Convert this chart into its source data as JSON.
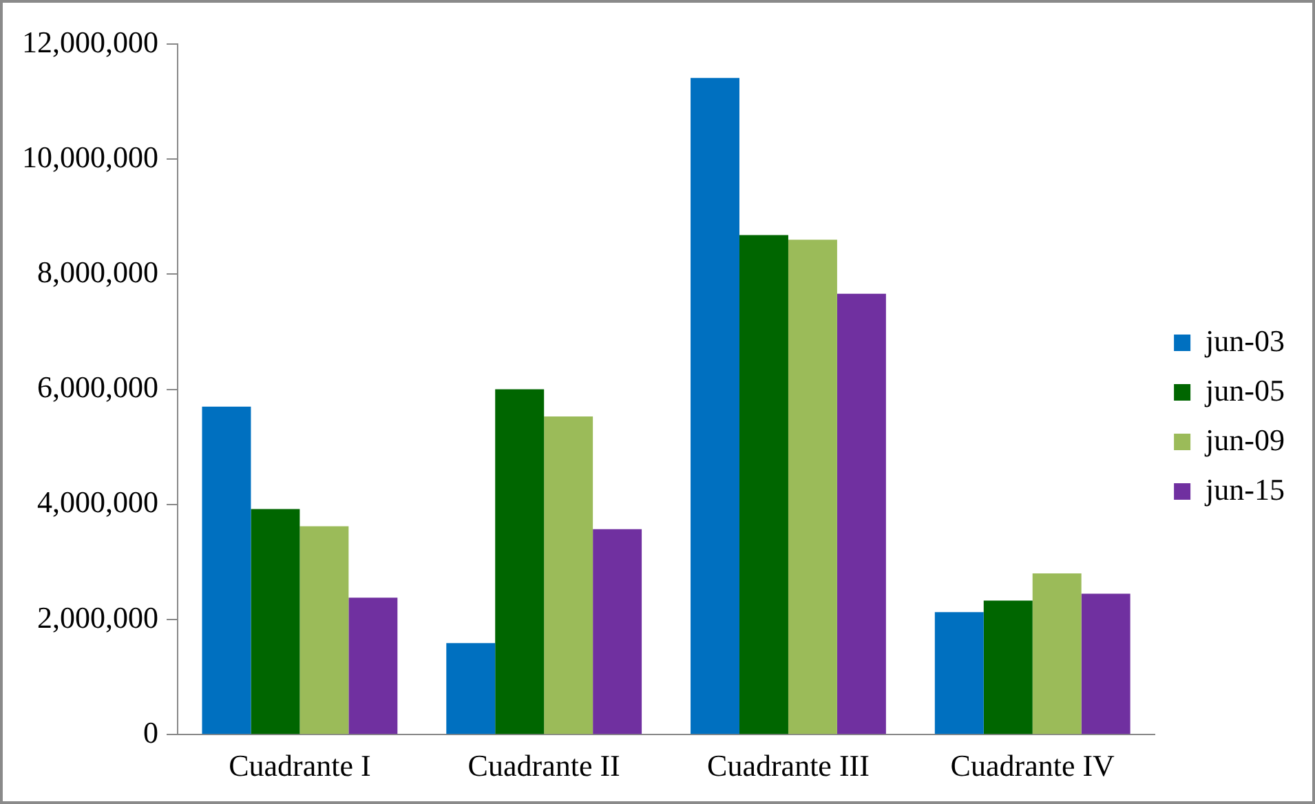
{
  "chart_data": {
    "type": "bar",
    "categories": [
      "Cuadrante I",
      "Cuadrante II",
      "Cuadrante III",
      "Cuadrante IV"
    ],
    "series": [
      {
        "name": "jun-03",
        "color": "#0070c0",
        "values": [
          5700000,
          1590000,
          11410000,
          2130000
        ]
      },
      {
        "name": "jun-05",
        "color": "#006600",
        "values": [
          3920000,
          6000000,
          8680000,
          2330000
        ]
      },
      {
        "name": "jun-09",
        "color": "#9bbb59",
        "values": [
          3620000,
          5530000,
          8600000,
          2800000
        ]
      },
      {
        "name": "jun-15",
        "color": "#7030a0",
        "values": [
          2380000,
          3570000,
          7660000,
          2450000
        ]
      }
    ],
    "ylim": [
      0,
      12000000
    ],
    "yticks": [
      0,
      {
        "value": 2000000,
        "label": "2,000,000"
      },
      {
        "value": 4000000,
        "label": "4,000,000"
      },
      {
        "value": 6000000,
        "label": "6,000,000"
      },
      {
        "value": 8000000,
        "label": "8,000,000"
      },
      {
        "value": 10000000,
        "label": "10,000,000"
      },
      {
        "value": 12000000,
        "label": "12,000,000"
      }
    ],
    "grid": false,
    "legend": "right"
  }
}
